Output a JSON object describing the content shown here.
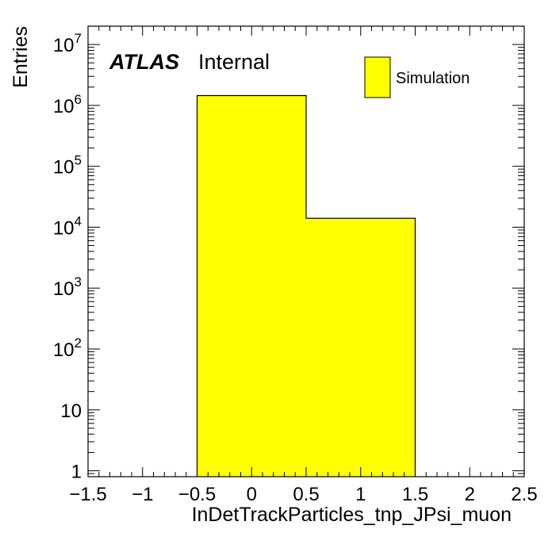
{
  "chart_data": {
    "type": "bar",
    "histogram": true,
    "xlabel": "InDetTrackParticles_tnp_JPsi_muon",
    "ylabel": "Entries",
    "xlim": [
      -1.5,
      2.5
    ],
    "ylim": [
      0.8,
      20000000
    ],
    "yscale": "log",
    "grid": false,
    "fill_color": "#ffff00",
    "edge_color": "#000000",
    "bins": [
      {
        "low": -0.5,
        "high": 0.5,
        "value": 1450000
      },
      {
        "low": 0.5,
        "high": 1.5,
        "value": 14000
      }
    ],
    "x_ticks": [
      {
        "value": -1.5,
        "label": "−1.5"
      },
      {
        "value": -1.0,
        "label": "−1"
      },
      {
        "value": -0.5,
        "label": "−0.5"
      },
      {
        "value": 0.0,
        "label": "0"
      },
      {
        "value": 0.5,
        "label": "0.5"
      },
      {
        "value": 1.0,
        "label": "1"
      },
      {
        "value": 1.5,
        "label": "1.5"
      },
      {
        "value": 2.0,
        "label": "2"
      },
      {
        "value": 2.5,
        "label": "2.5"
      }
    ],
    "y_ticks": [
      {
        "value": 1,
        "base": "1",
        "exp": ""
      },
      {
        "value": 10,
        "base": "10",
        "exp": ""
      },
      {
        "value": 100,
        "base": "10",
        "exp": "2"
      },
      {
        "value": 1000,
        "base": "10",
        "exp": "3"
      },
      {
        "value": 10000,
        "base": "10",
        "exp": "4"
      },
      {
        "value": 100000,
        "base": "10",
        "exp": "5"
      },
      {
        "value": 1000000,
        "base": "10",
        "exp": "6"
      },
      {
        "value": 10000000,
        "base": "10",
        "exp": "7"
      }
    ],
    "legend": {
      "placement": "top-right",
      "entries": [
        {
          "label": "Simulation",
          "color": "#ffff00"
        }
      ]
    },
    "annotations": {
      "atlas": "ATLAS",
      "status": "Internal"
    }
  }
}
